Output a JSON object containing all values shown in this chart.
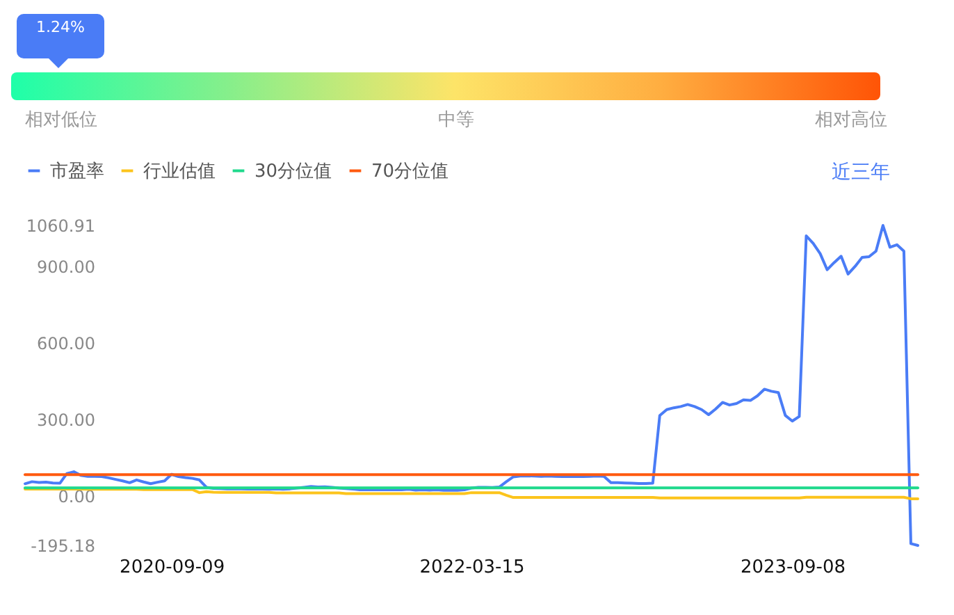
{
  "chart_data": [
    {
      "type": "other",
      "annotations": [
        "1.24%",
        "相对低位",
        "中等",
        "相对高位"
      ]
    },
    {
      "type": "line",
      "categories": [
        null,
        null,
        null,
        null,
        null,
        null,
        null,
        null,
        null,
        null,
        null,
        null,
        null,
        null,
        null,
        null,
        null,
        null,
        null,
        null,
        null,
        "2020-09-09",
        null,
        null,
        null,
        null,
        null,
        null,
        null,
        null,
        null,
        null,
        null,
        null,
        null,
        null,
        null,
        null,
        null,
        null,
        null,
        null,
        null,
        null,
        null,
        null,
        null,
        null,
        null,
        null,
        null,
        null,
        null,
        null,
        null,
        null,
        null,
        null,
        null,
        null,
        null,
        null,
        null,
        null,
        "2022-03-15",
        null,
        null,
        null,
        null,
        null,
        null,
        null,
        null,
        null,
        null,
        null,
        null,
        null,
        null,
        null,
        null,
        null,
        null,
        null,
        null,
        null,
        null,
        null,
        null,
        null,
        null,
        null,
        null,
        null,
        null,
        null,
        null,
        null,
        null,
        null,
        null,
        null,
        null,
        null,
        null,
        null,
        null,
        null,
        null,
        null,
        "2023-09-08",
        null,
        null,
        null,
        null,
        null,
        null,
        null,
        null,
        null,
        null,
        null,
        null,
        null,
        null,
        null,
        null,
        null,
        null
      ],
      "series": [
        {
          "name": "市盈率",
          "color": "#4a7cf6",
          "values": [
            47,
            55,
            52,
            53,
            50,
            49,
            87,
            94,
            80,
            76,
            76,
            75,
            70,
            64,
            58,
            51,
            62,
            54,
            47,
            53,
            58,
            84,
            75,
            71,
            68,
            62,
            33,
            29,
            28,
            27,
            27,
            27,
            26,
            27,
            26,
            25,
            27,
            25,
            27,
            30,
            33,
            36,
            34,
            35,
            33,
            30,
            28,
            26,
            23,
            23,
            23,
            24,
            23,
            24,
            23,
            25,
            22,
            23,
            22,
            23,
            21,
            22,
            21,
            23,
            30,
            33,
            33,
            32,
            34,
            55,
            74,
            77,
            78,
            77,
            76,
            77,
            76,
            75,
            76,
            75,
            75,
            76,
            77,
            76,
            51,
            51,
            50,
            49,
            48,
            48,
            49,
            315,
            338,
            345,
            350,
            358,
            350,
            338,
            318,
            340,
            366,
            356,
            362,
            376,
            374,
            392,
            418,
            410,
            405,
            315,
            293,
            311,
            1020,
            990,
            950,
            887,
            915,
            940,
            870,
            900,
            935,
            938,
            960,
            1060.91,
            975,
            985,
            960,
            -188,
            -195.18
          ]
        },
        {
          "name": "行业估值",
          "color": "#fcc41c",
          "values": [
            26,
            26,
            26,
            26,
            26,
            26,
            26,
            26,
            26,
            25,
            25,
            25,
            25,
            25,
            25,
            25,
            25,
            24,
            24,
            24,
            24,
            24,
            24,
            24,
            24,
            12,
            16,
            14,
            13,
            13,
            13,
            13,
            13,
            13,
            13,
            13,
            11,
            11,
            11,
            11,
            11,
            11,
            11,
            11,
            11,
            11,
            8,
            8,
            8,
            8,
            8,
            8,
            8,
            8,
            8,
            8,
            8,
            8,
            8,
            8,
            8,
            8,
            8,
            8,
            12,
            12,
            12,
            12,
            12,
            2,
            -7,
            -7,
            -7,
            -7,
            -7,
            -7,
            -7,
            -7,
            -7,
            -7,
            -7,
            -7,
            -7,
            -7,
            -7,
            -7,
            -7,
            -7,
            -7,
            -7,
            -7,
            -9,
            -9,
            -9,
            -9,
            -9,
            -9,
            -9,
            -9,
            -9,
            -9,
            -9,
            -9,
            -9,
            -9,
            -9,
            -9,
            -9,
            -9,
            -9,
            -9,
            -9,
            -6,
            -6,
            -6,
            -6,
            -6,
            -6,
            -6,
            -6,
            -6,
            -6,
            -6,
            -6,
            -6,
            -6,
            -6,
            -12,
            -12
          ]
        },
        {
          "name": "30分位值",
          "color": "#1fd98c",
          "values": [
            31,
            31,
            31,
            31,
            31,
            31,
            31,
            31,
            31,
            31,
            31,
            31,
            31,
            31,
            31,
            31,
            31,
            31,
            31,
            31,
            31,
            31,
            31,
            31,
            31,
            31,
            31,
            31,
            31,
            31,
            31,
            31,
            31,
            31,
            31,
            31,
            31,
            31,
            31,
            31,
            31,
            31,
            31,
            31,
            31,
            31,
            31,
            31,
            31,
            31,
            31,
            31,
            31,
            31,
            31,
            31,
            31,
            31,
            31,
            31,
            31,
            31,
            31,
            31,
            31,
            31,
            31,
            31,
            31,
            31,
            31,
            31,
            31,
            31,
            31,
            31,
            31,
            31,
            31,
            31,
            31,
            31,
            31,
            31,
            31,
            31,
            31,
            31,
            31,
            31,
            31,
            31,
            31,
            31,
            31,
            31,
            31,
            31,
            31,
            31,
            31,
            31,
            31,
            31,
            31,
            31,
            31,
            31,
            31,
            31,
            31,
            31,
            31,
            31,
            31,
            31,
            31,
            31,
            31,
            31,
            31,
            31,
            31,
            31,
            31,
            31,
            31,
            31,
            31
          ]
        },
        {
          "name": "70分位值",
          "color": "#ff5a0f",
          "values": [
            83,
            83,
            83,
            83,
            83,
            83,
            83,
            83,
            83,
            83,
            83,
            83,
            83,
            83,
            83,
            83,
            83,
            83,
            83,
            83,
            83,
            83,
            83,
            83,
            83,
            83,
            83,
            83,
            83,
            83,
            83,
            83,
            83,
            83,
            83,
            83,
            83,
            83,
            83,
            83,
            83,
            83,
            83,
            83,
            83,
            83,
            83,
            83,
            83,
            83,
            83,
            83,
            83,
            83,
            83,
            83,
            83,
            83,
            83,
            83,
            83,
            83,
            83,
            83,
            83,
            83,
            83,
            83,
            83,
            83,
            83,
            83,
            83,
            83,
            83,
            83,
            83,
            83,
            83,
            83,
            83,
            83,
            83,
            83,
            83,
            83,
            83,
            83,
            83,
            83,
            83,
            83,
            83,
            83,
            83,
            83,
            83,
            83,
            83,
            83,
            83,
            83,
            83,
            83,
            83,
            83,
            83,
            83,
            83,
            83,
            83,
            83,
            83,
            83,
            83,
            83,
            83,
            83,
            83,
            83,
            83,
            83,
            83,
            83,
            83,
            83,
            83,
            83,
            83
          ]
        }
      ],
      "ylim": [
        -195.18,
        1060.91
      ],
      "yticks": [
        -195.18,
        {
          "value": 0,
          "label": "0.00"
        },
        {
          "value": 300,
          "label": "300.00"
        },
        {
          "value": 600,
          "label": "600.00"
        },
        {
          "value": 900,
          "label": "900.00"
        },
        1060.91
      ],
      "grid": false,
      "legend": "top left",
      "annotations": [
        "近三年"
      ]
    }
  ]
}
